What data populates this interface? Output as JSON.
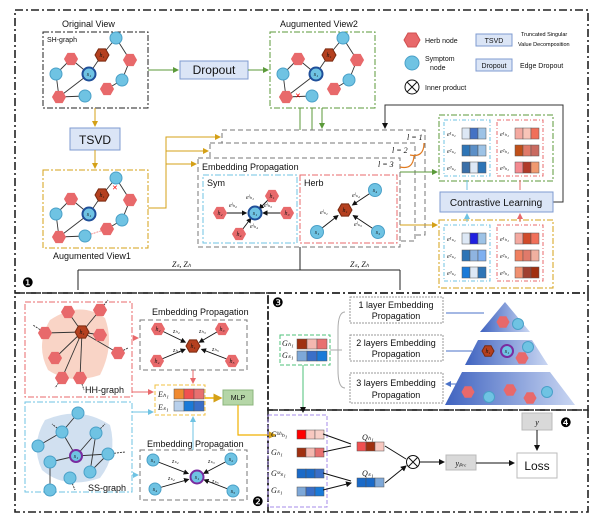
{
  "colors": {
    "herb": "#e8696b",
    "herb_center": "#b5401f",
    "symptom": "#6fc3e3",
    "symptom_center": "#1f4f9a",
    "green": "#5b9a3a",
    "gold": "#d4a017",
    "blue_box": "#dbe5f6",
    "ss_purple": "#7a2ca0",
    "mlp": "#b5d6a7"
  },
  "top": {
    "original_view": "Original View",
    "sh_graph": "SH-graph",
    "dropout": "Dropout",
    "tsvd": "TSVD",
    "augmented_view1": "Augumented View1",
    "augmented_view2": "Augumented View2",
    "embedding_propagation": "Embedding Propagation",
    "sym": "Sym",
    "herb": "Herb",
    "layers": [
      "l = 1",
      "l = 2",
      "l = 3"
    ],
    "contrastive_learning": "Contrastive Learning",
    "z_left": "Zₛ, Zₕ",
    "z_right": "Zₛ, Zₕ",
    "section_marker": "❶",
    "emb_sym_labels": [
      "e¹ₛ₁",
      "e²ₛ₁",
      "e³ₛ₁"
    ],
    "emb_herb_labels": [
      "e¹ₕ₁",
      "e²ₕ₁",
      "e³ₕ₁"
    ],
    "node_labels": {
      "h1": "h₁",
      "s1": "s₁",
      "h2": "h₂",
      "h3": "h₃",
      "h4": "h₄",
      "s3": "s₃",
      "s4": "s₄"
    },
    "edge_labels_sym": [
      "eˡₕ₁",
      "eˡₕ₂",
      "eˡₕ₃",
      "eˡₕ₄"
    ],
    "edge_labels_herb": [
      "eˡₛ₁",
      "eˡₛ₃",
      "eˡₛ₄"
    ]
  },
  "legend": {
    "herb_node": "Herb node",
    "symptom_node_1": "Symptom",
    "symptom_node_2": "node",
    "inner_product": "Inner product",
    "tsvd_key": "TSVD",
    "tsvd_desc_1": "Truncated Singular",
    "tsvd_desc_2": "Value Decomposition",
    "dropout_key": "Dropout",
    "dropout_desc": "Edge Dropout"
  },
  "section2": {
    "marker": "❷",
    "hh_graph": "HH-graph",
    "ss_graph": "SS-graph",
    "emb_prop_top": "Embedding Propagation",
    "emb_prop_bottom": "Embedding Propagation",
    "e_h": "Eₕ₁",
    "e_s": "Eₛ₁",
    "mlp": "MLP",
    "z_h_labels": [
      "zₕ₂",
      "zₕ₃",
      "zₕ₄",
      "zₕ₅"
    ],
    "z_s_labels": [
      "zₛ₂",
      "zₛ₃",
      "zₛ₄",
      "zₛ₅"
    ],
    "hh_nodes": [
      "h₁",
      "h₂",
      "h₃",
      "h₄",
      "h₅"
    ],
    "ss_nodes": [
      "s₁",
      "s₂",
      "s₃",
      "s₄",
      "s₅"
    ]
  },
  "section3": {
    "marker": "❸",
    "g_h": "Gₕ₁",
    "g_s": "Gₛ₁",
    "layer1": [
      "1 layer Embedding",
      "Propagation"
    ],
    "layer2": [
      "2 layers Embedding",
      "Propagation"
    ],
    "layer3": [
      "3 layers Embedding",
      "Propagation"
    ],
    "pyramid_h": "h₁",
    "pyramid_s": "s₁"
  },
  "section4": {
    "marker": "❹",
    "g_hh": "Gʰʰₕ₁",
    "g_h": "Gₕ₁",
    "g_ss": "Gˢˢₛ₁",
    "g_s": "Gₛ₁",
    "q_h": "Qₕ₁",
    "q_s": "Qₛ₁",
    "y_pre": "yₚᵣₑ",
    "y": "y",
    "loss": "Loss"
  }
}
